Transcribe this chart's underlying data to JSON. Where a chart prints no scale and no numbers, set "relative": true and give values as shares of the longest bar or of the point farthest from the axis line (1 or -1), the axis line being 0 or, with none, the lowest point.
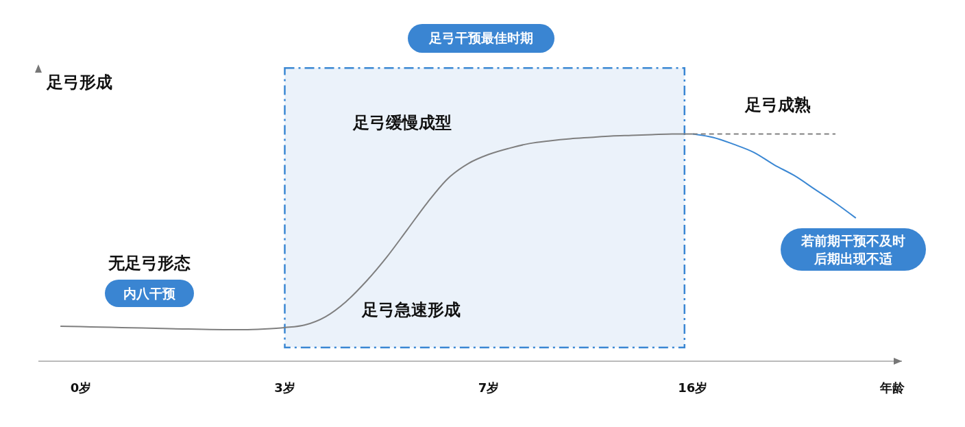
{
  "chart_data": {
    "type": "line",
    "relative": true,
    "xlabel": "年龄",
    "ylabel": "足弓形成",
    "categories": [
      null,
      "0岁",
      null,
      null,
      null,
      null,
      null,
      null,
      null,
      null,
      null,
      "3岁",
      null,
      null,
      null,
      null,
      null,
      null,
      null,
      null,
      null,
      "7岁",
      null,
      null,
      null,
      null,
      null,
      null,
      null,
      null,
      null,
      "16岁",
      null,
      null,
      null,
      null,
      null,
      null,
      null,
      null
    ],
    "series": [
      {
        "color": "#7f7f7f",
        "values": [
          0.154,
          0.152,
          0.15,
          0.148,
          0.146,
          0.144,
          0.142,
          0.14,
          0.139,
          0.139,
          0.142,
          0.148,
          0.16,
          0.196,
          0.262,
          0.352,
          0.458,
          0.578,
          0.699,
          0.804,
          0.87,
          0.91,
          0.937,
          0.958,
          0.97,
          0.979,
          0.985,
          0.991,
          0.994,
          0.997,
          1,
          1,
          null,
          null,
          null,
          null,
          null,
          null,
          null,
          null
        ]
      },
      {
        "color": "#3a87d3",
        "values": [
          null,
          null,
          null,
          null,
          null,
          null,
          null,
          null,
          null,
          null,
          null,
          null,
          null,
          null,
          null,
          null,
          null,
          null,
          null,
          null,
          null,
          null,
          null,
          null,
          null,
          null,
          null,
          null,
          null,
          null,
          null,
          1,
          0.985,
          0.955,
          0.919,
          0.864,
          0.816,
          0.756,
          0.696,
          0.63
        ]
      },
      {
        "color": "#808080",
        "line_style": "dashed",
        "values": [
          null,
          null,
          null,
          null,
          null,
          null,
          null,
          null,
          null,
          null,
          null,
          null,
          null,
          null,
          null,
          null,
          null,
          null,
          null,
          null,
          null,
          null,
          null,
          null,
          null,
          null,
          null,
          null,
          null,
          null,
          null,
          1,
          1,
          1,
          1,
          1,
          1,
          1,
          1,
          null
        ]
      }
    ],
    "bands": [
      {
        "axis": "x",
        "from": "3岁",
        "to": "16岁",
        "label": "足弓干预最佳时期",
        "color": "#ebf2fa"
      }
    ],
    "annotations": [
      "无足弓形态",
      "内八干预",
      "足弓急速形成",
      "足弓缓慢成型",
      "足弓成熟",
      "若前期干预不及时",
      "后期出现不适"
    ],
    "grid": false,
    "marker": "none"
  }
}
